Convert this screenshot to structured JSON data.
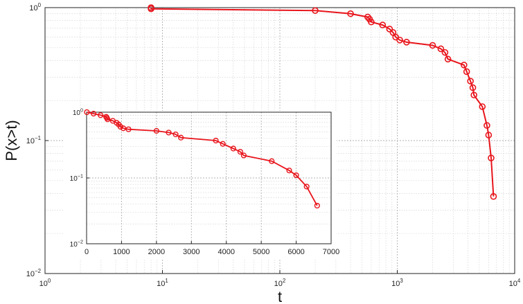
{
  "chart_data": [
    {
      "type": "line",
      "role": "main",
      "xlabel": "t",
      "ylabel": "P(x>t)",
      "x_scale": "log",
      "y_scale": "log",
      "xlim": [
        1,
        10000
      ],
      "ylim": [
        0.01,
        1
      ],
      "grid": true,
      "x_ticks": [
        {
          "value": 1,
          "base": "10",
          "exp": "0"
        },
        {
          "value": 10,
          "base": "10",
          "exp": "1"
        },
        {
          "value": 100,
          "base": "10",
          "exp": "2"
        },
        {
          "value": 1000,
          "base": "10",
          "exp": "3"
        },
        {
          "value": 10000,
          "base": "10",
          "exp": "4"
        }
      ],
      "y_ticks": [
        {
          "value": 0.01,
          "base": "10",
          "exp": "−2"
        },
        {
          "value": 0.1,
          "base": "10",
          "exp": "−1"
        },
        {
          "value": 1,
          "base": "10",
          "exp": "0"
        }
      ],
      "series": [
        {
          "color": "#e8141b",
          "marker": "open-circle",
          "x": [
            8,
            8,
            200,
            400,
            560,
            580,
            600,
            750,
            860,
            920,
            970,
            1050,
            1200,
            2000,
            2350,
            2550,
            2700,
            3700,
            3900,
            4200,
            4400,
            4500,
            5300,
            5800,
            6000,
            6300,
            6600
          ],
          "y": [
            1.0,
            0.98,
            0.95,
            0.9,
            0.85,
            0.82,
            0.78,
            0.74,
            0.69,
            0.65,
            0.6,
            0.57,
            0.55,
            0.52,
            0.49,
            0.46,
            0.41,
            0.37,
            0.33,
            0.28,
            0.25,
            0.22,
            0.18,
            0.13,
            0.11,
            0.074,
            0.038
          ]
        }
      ]
    },
    {
      "type": "line",
      "role": "inset",
      "x_scale": "linear",
      "y_scale": "log",
      "xlim": [
        0,
        7000
      ],
      "ylim": [
        0.01,
        1
      ],
      "grid": true,
      "x_ticks": [
        {
          "value": 0,
          "label": "0"
        },
        {
          "value": 1000,
          "label": "1000"
        },
        {
          "value": 2000,
          "label": "2000"
        },
        {
          "value": 3000,
          "label": "3000"
        },
        {
          "value": 4000,
          "label": "4000"
        },
        {
          "value": 5000,
          "label": "5000"
        },
        {
          "value": 6000,
          "label": "6000"
        },
        {
          "value": 7000,
          "label": "7000"
        }
      ],
      "y_ticks": [
        {
          "value": 0.01,
          "base": "10",
          "exp": "−2"
        },
        {
          "value": 0.1,
          "base": "10",
          "exp": "−1"
        },
        {
          "value": 1,
          "base": "10",
          "exp": "0"
        }
      ],
      "series": [
        {
          "color": "#e8141b",
          "marker": "open-circle",
          "x": [
            8,
            200,
            400,
            560,
            580,
            600,
            750,
            860,
            920,
            970,
            1050,
            1200,
            2000,
            2350,
            2550,
            2700,
            3700,
            3900,
            4200,
            4400,
            4500,
            5300,
            5800,
            6000,
            6300,
            6600
          ],
          "y": [
            1.0,
            0.95,
            0.9,
            0.85,
            0.82,
            0.78,
            0.74,
            0.69,
            0.65,
            0.6,
            0.57,
            0.55,
            0.52,
            0.49,
            0.46,
            0.41,
            0.37,
            0.33,
            0.28,
            0.25,
            0.22,
            0.18,
            0.13,
            0.11,
            0.074,
            0.038
          ]
        }
      ]
    }
  ]
}
